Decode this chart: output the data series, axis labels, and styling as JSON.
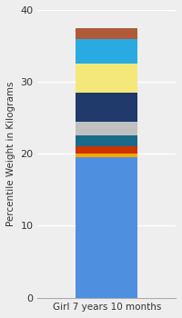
{
  "category": "Girl 7 years 10 months",
  "ylabel": "Percentile Weight in Kilograms",
  "ylim": [
    0,
    40
  ],
  "yticks": [
    0,
    10,
    20,
    30,
    40
  ],
  "background_color": "#eeeeee",
  "bar_width": 0.45,
  "segments": [
    {
      "value": 19.5,
      "color": "#4F8FE0"
    },
    {
      "value": 0.5,
      "color": "#F5A800"
    },
    {
      "value": 1.0,
      "color": "#CC3300"
    },
    {
      "value": 1.5,
      "color": "#1A6B8A"
    },
    {
      "value": 2.0,
      "color": "#C0C0C0"
    },
    {
      "value": 4.0,
      "color": "#1F3A6B"
    },
    {
      "value": 4.0,
      "color": "#F5E87A"
    },
    {
      "value": 3.5,
      "color": "#29ABE2"
    },
    {
      "value": 1.5,
      "color": "#B05A3A"
    }
  ]
}
